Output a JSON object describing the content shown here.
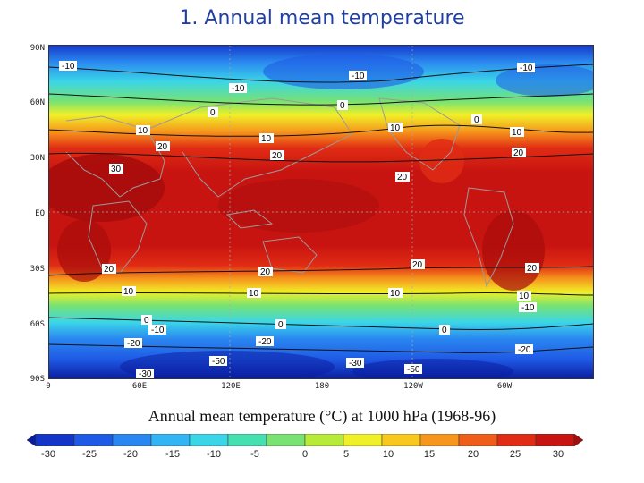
{
  "title": "1. Annual mean temperature",
  "caption": "Annual mean temperature (°C) at 1000 hPa (1968-96)",
  "lat_labels": [
    "90N",
    "60N",
    "30N",
    "EQ",
    "30S",
    "60S",
    "90S"
  ],
  "lon_labels": [
    "0",
    "60E",
    "120E",
    "180",
    "120W",
    "60W"
  ],
  "colorbar": {
    "ticks": [
      "-30",
      "-25",
      "-20",
      "-15",
      "-10",
      "-5",
      "0",
      "5",
      "10",
      "15",
      "20",
      "25",
      "30"
    ],
    "colors": [
      "#0a1c9e",
      "#1436c8",
      "#1f5ae6",
      "#2a86f0",
      "#33b4f4",
      "#3ad6e8",
      "#46e0b0",
      "#78e272",
      "#b8ea3a",
      "#f0f028",
      "#f8c81e",
      "#f6961c",
      "#ee5e1a",
      "#e02c14",
      "#c81410",
      "#a60c0c"
    ]
  },
  "contour_labels": [
    {
      "text": "-10"
    },
    {
      "text": "-10"
    },
    {
      "text": "-10"
    },
    {
      "text": "0"
    },
    {
      "text": "0"
    },
    {
      "text": "0"
    },
    {
      "text": "10"
    },
    {
      "text": "10"
    },
    {
      "text": "10"
    },
    {
      "text": "10"
    },
    {
      "text": "20"
    },
    {
      "text": "20"
    },
    {
      "text": "20"
    },
    {
      "text": "20"
    },
    {
      "text": "30"
    },
    {
      "text": "20"
    },
    {
      "text": "20"
    },
    {
      "text": "20"
    },
    {
      "text": "20"
    },
    {
      "text": "10"
    },
    {
      "text": "10"
    },
    {
      "text": "10"
    },
    {
      "text": "10"
    },
    {
      "text": "0"
    },
    {
      "text": "0"
    },
    {
      "text": "0"
    },
    {
      "text": "-10"
    },
    {
      "text": "-10"
    },
    {
      "text": "-20"
    },
    {
      "text": "-20"
    },
    {
      "text": "-20"
    },
    {
      "text": "-30"
    },
    {
      "text": "-50"
    },
    {
      "text": "-30"
    },
    {
      "text": "-50"
    },
    {
      "text": "-10"
    }
  ]
}
